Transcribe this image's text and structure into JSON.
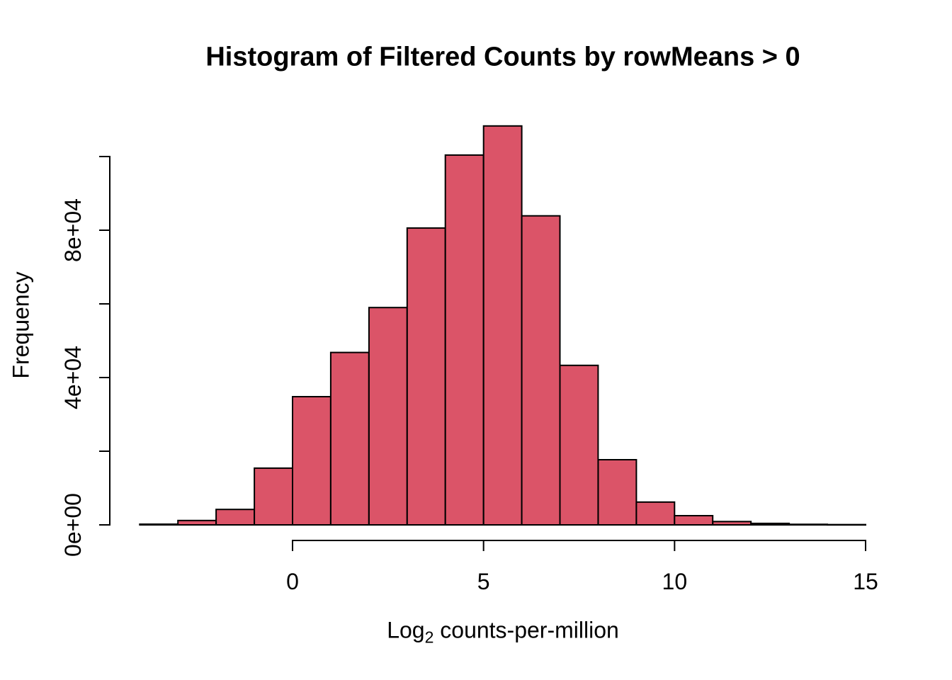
{
  "chart_data": {
    "type": "bar",
    "subtype": "histogram",
    "title": "Histogram of Filtered Counts by rowMeans > 0",
    "xlabel": "Log2 counts-per-million",
    "xlabel_parts": {
      "prefix": "Log",
      "subscript": "2",
      "suffix": " counts-per-million"
    },
    "ylabel": "Frequency",
    "bin_width": 1,
    "bin_edges": [
      -4,
      -3,
      -2,
      -1,
      0,
      1,
      2,
      3,
      4,
      5,
      6,
      7,
      8,
      9,
      10,
      11,
      12,
      13,
      14,
      15
    ],
    "counts": [
      200,
      1200,
      4200,
      15400,
      34800,
      46800,
      59000,
      80600,
      100400,
      108300,
      83900,
      43300,
      17700,
      6200,
      2500,
      900,
      400,
      150,
      80
    ],
    "x_ticks": [
      {
        "value": 0,
        "label": "0"
      },
      {
        "value": 5,
        "label": "5"
      },
      {
        "value": 10,
        "label": "10"
      },
      {
        "value": 15,
        "label": "15"
      }
    ],
    "y_ticks": [
      {
        "value": 0,
        "label": "0e+00"
      },
      {
        "value": 20000,
        "label": ""
      },
      {
        "value": 40000,
        "label": "4e+04"
      },
      {
        "value": 60000,
        "label": ""
      },
      {
        "value": 80000,
        "label": "8e+04"
      },
      {
        "value": 100000,
        "label": ""
      }
    ],
    "x_axis_range": [
      0,
      15
    ],
    "y_axis_range": [
      0,
      100000
    ],
    "grid": false,
    "legend": null,
    "colors": {
      "bar_fill": "#DB5468",
      "bar_border": "#000000",
      "axis": "#000000",
      "text": "#000000",
      "background": "#FFFFFF"
    }
  }
}
